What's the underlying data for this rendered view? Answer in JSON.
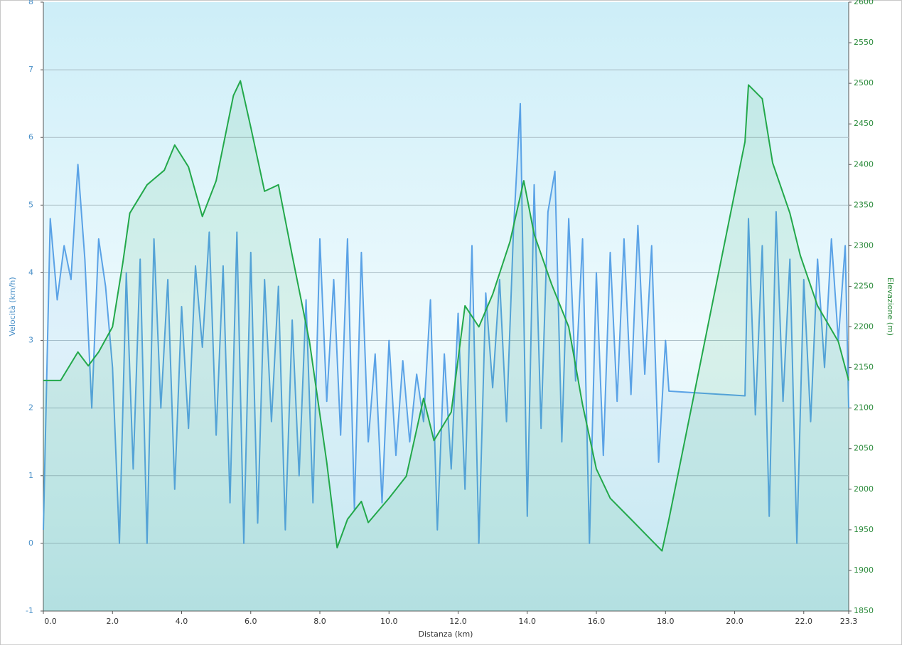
{
  "chart_data": {
    "type": "line",
    "x_label": "Distanza  (km)",
    "y_label": "Velocità (km/h)",
    "y2_label": "Elevazione (m)",
    "xlim": [
      0,
      23.3
    ],
    "ylim": [
      -1,
      8
    ],
    "y2lim": [
      1850,
      2600
    ],
    "xticks": [
      {
        "value": 0,
        "label": "0.0"
      },
      {
        "value": 2,
        "label": "2.0"
      },
      {
        "value": 4,
        "label": "4.0"
      },
      {
        "value": 6,
        "label": "6.0"
      },
      {
        "value": 8,
        "label": "8.0"
      },
      {
        "value": 10,
        "label": "10.0"
      },
      {
        "value": 12,
        "label": "12.0"
      },
      {
        "value": 14,
        "label": "14.0"
      },
      {
        "value": 16,
        "label": "16.0"
      },
      {
        "value": 18,
        "label": "18.0"
      },
      {
        "value": 20,
        "label": "20.0"
      },
      {
        "value": 22,
        "label": "22.0"
      },
      23.3
    ],
    "yticks": [
      -1,
      0,
      1,
      2,
      3,
      4,
      5,
      6,
      7,
      8
    ],
    "y2ticks": [
      1850,
      1900,
      1950,
      2000,
      2050,
      2100,
      2150,
      2200,
      2250,
      2300,
      2350,
      2400,
      2450,
      2500,
      2550,
      2600
    ],
    "grid": true,
    "series": [
      {
        "name": "Velocità",
        "color": "#5aa2e6",
        "axis": "y",
        "x": [
          0,
          0.2,
          0.4,
          0.6,
          0.8,
          1.0,
          1.2,
          1.4,
          1.6,
          1.8,
          2.0,
          2.2,
          2.4,
          2.6,
          2.8,
          3.0,
          3.2,
          3.4,
          3.6,
          3.8,
          4.0,
          4.2,
          4.4,
          4.6,
          4.8,
          5.0,
          5.2,
          5.4,
          5.6,
          5.8,
          6.0,
          6.2,
          6.4,
          6.6,
          6.8,
          7.0,
          7.2,
          7.4,
          7.6,
          7.8,
          8.0,
          8.2,
          8.4,
          8.6,
          8.8,
          9.0,
          9.2,
          9.4,
          9.6,
          9.8,
          10.0,
          10.2,
          10.4,
          10.6,
          10.8,
          11.0,
          11.2,
          11.4,
          11.6,
          11.8,
          12.0,
          12.2,
          12.4,
          12.6,
          12.8,
          13.0,
          13.2,
          13.4,
          13.6,
          13.8,
          14.0,
          14.2,
          14.4,
          14.6,
          14.8,
          15.0,
          15.2,
          15.4,
          15.6,
          15.8,
          16.0,
          16.2,
          16.4,
          16.6,
          16.8,
          17.0,
          17.2,
          17.4,
          17.6,
          17.8,
          18.0,
          18.1,
          20.3,
          20.4,
          20.6,
          20.8,
          21.0,
          21.2,
          21.4,
          21.6,
          21.8,
          22.0,
          22.2,
          22.4,
          22.6,
          22.8,
          23.0,
          23.2,
          23.3
        ],
        "values": [
          0.2,
          4.8,
          3.6,
          4.4,
          3.9,
          5.6,
          4.2,
          2.0,
          4.5,
          3.8,
          2.6,
          0.0,
          4.0,
          1.1,
          4.2,
          0.0,
          4.5,
          2.0,
          3.9,
          0.8,
          3.5,
          1.7,
          4.1,
          2.9,
          4.6,
          1.6,
          4.1,
          0.6,
          4.6,
          0.0,
          4.3,
          0.3,
          3.9,
          1.8,
          3.8,
          0.2,
          3.3,
          1.0,
          3.6,
          0.6,
          4.5,
          2.1,
          3.9,
          1.6,
          4.5,
          0.5,
          4.3,
          1.5,
          2.8,
          0.6,
          3.0,
          1.3,
          2.7,
          1.5,
          2.5,
          1.8,
          3.6,
          0.2,
          2.8,
          1.1,
          3.4,
          0.8,
          4.4,
          0.0,
          3.7,
          2.3,
          3.9,
          1.8,
          4.6,
          6.5,
          0.4,
          5.3,
          1.7,
          4.9,
          5.5,
          1.5,
          4.8,
          2.4,
          4.5,
          0.0,
          4.0,
          1.3,
          4.3,
          2.1,
          4.5,
          2.2,
          4.7,
          2.5,
          4.4,
          1.2,
          3.0,
          2.25,
          2.18,
          4.8,
          1.9,
          4.4,
          0.4,
          4.9,
          2.1,
          4.2,
          0.0,
          3.9,
          1.8,
          4.2,
          2.6,
          4.5,
          3.0,
          4.4,
          2.0
        ]
      },
      {
        "name": "Elevazione",
        "color": "#22a84a",
        "axis": "y2",
        "x": [
          0,
          0.5,
          1.0,
          1.3,
          1.6,
          2.0,
          2.3,
          2.5,
          3.0,
          3.5,
          3.8,
          4.2,
          4.6,
          5.0,
          5.5,
          5.7,
          6.0,
          6.4,
          6.8,
          7.2,
          7.7,
          8.2,
          8.5,
          8.8,
          9.2,
          9.4,
          10.0,
          10.5,
          11.0,
          11.3,
          11.8,
          12.2,
          12.6,
          13.0,
          13.5,
          13.9,
          14.2,
          14.7,
          15.2,
          15.6,
          16.0,
          16.4,
          17.0,
          17.6,
          17.9,
          18.1,
          20.3,
          20.4,
          20.8,
          21.1,
          21.6,
          21.9,
          22.4,
          23.0,
          23.3
        ],
        "values": [
          2134,
          2134,
          2169,
          2152,
          2169,
          2200,
          2279,
          2340,
          2375,
          2393,
          2424,
          2397,
          2336,
          2380,
          2485,
          2503,
          2446,
          2367,
          2375,
          2288,
          2182,
          2033,
          1928,
          1963,
          1985,
          1959,
          1989,
          2016,
          2112,
          2060,
          2095,
          2226,
          2200,
          2240,
          2305,
          2380,
          2314,
          2253,
          2200,
          2104,
          2025,
          1989,
          1963,
          1937,
          1924,
          1963,
          2428,
          2498,
          2481,
          2402,
          2340,
          2288,
          2226,
          2182,
          2134
        ]
      }
    ]
  }
}
